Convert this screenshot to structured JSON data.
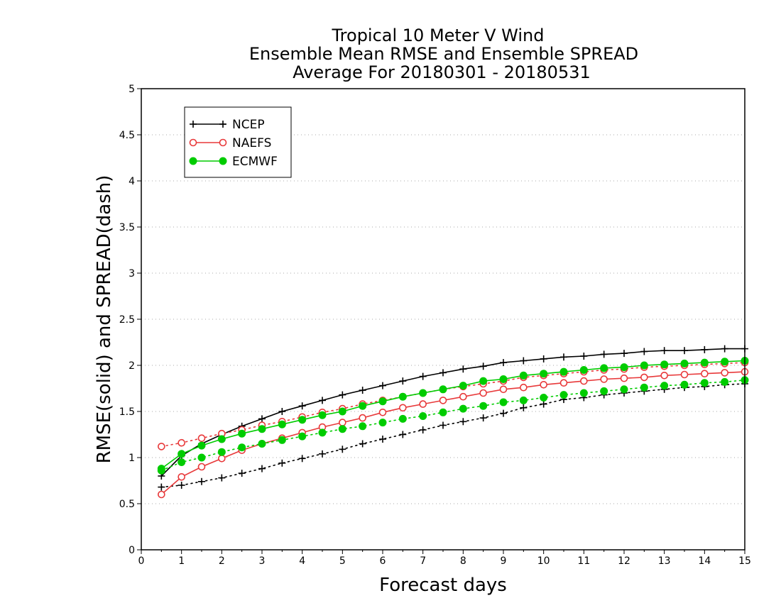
{
  "chart_data": {
    "type": "line",
    "title_lines": [
      "Tropical 10 Meter V Wind",
      "Ensemble Mean RMSE and Ensemble SPREAD",
      "Average For 20180301 - 20180531"
    ],
    "xlabel": "Forecast days",
    "ylabel": "RMSE(solid) and SPREAD(dash)",
    "xlim": [
      0,
      15
    ],
    "ylim": [
      0,
      5
    ],
    "xticks": [
      "0",
      "1",
      "2",
      "3",
      "4",
      "5",
      "6",
      "7",
      "8",
      "9",
      "10",
      "11",
      "12",
      "13",
      "14",
      "15"
    ],
    "yticks": [
      "0",
      "0.5",
      "1",
      "1.5",
      "2",
      "2.5",
      "3",
      "3.5",
      "4",
      "4.5",
      "5"
    ],
    "grid": "horizontal dotted",
    "legend_position": "top-left",
    "x": [
      0.5,
      1,
      1.5,
      2,
      2.5,
      3,
      3.5,
      4,
      4.5,
      5,
      5.5,
      6,
      6.5,
      7,
      7.5,
      8,
      8.5,
      9,
      9.5,
      10,
      10.5,
      11,
      11.5,
      12,
      12.5,
      13,
      13.5,
      14,
      14.5,
      15
    ],
    "series": [
      {
        "name": "NCEP",
        "color": "#000000",
        "marker": "plus",
        "rmse": [
          0.8,
          1.02,
          1.15,
          1.25,
          1.34,
          1.42,
          1.5,
          1.56,
          1.62,
          1.68,
          1.73,
          1.78,
          1.83,
          1.88,
          1.92,
          1.96,
          1.99,
          2.03,
          2.05,
          2.07,
          2.09,
          2.1,
          2.12,
          2.13,
          2.15,
          2.16,
          2.16,
          2.17,
          2.18,
          2.18
        ],
        "spread": [
          0.68,
          0.7,
          0.74,
          0.78,
          0.83,
          0.88,
          0.94,
          0.99,
          1.04,
          1.09,
          1.15,
          1.2,
          1.25,
          1.3,
          1.35,
          1.39,
          1.43,
          1.48,
          1.54,
          1.58,
          1.63,
          1.65,
          1.68,
          1.7,
          1.72,
          1.74,
          1.76,
          1.77,
          1.79,
          1.8
        ]
      },
      {
        "name": "NAEFS",
        "color": "#e8393a",
        "marker": "open-circle",
        "rmse": [
          0.6,
          0.79,
          0.9,
          0.99,
          1.08,
          1.15,
          1.21,
          1.27,
          1.33,
          1.38,
          1.43,
          1.49,
          1.54,
          1.58,
          1.62,
          1.66,
          1.7,
          1.74,
          1.76,
          1.79,
          1.81,
          1.83,
          1.85,
          1.86,
          1.87,
          1.89,
          1.9,
          1.91,
          1.92,
          1.93
        ],
        "spread": [
          1.12,
          1.16,
          1.21,
          1.26,
          1.3,
          1.35,
          1.39,
          1.44,
          1.49,
          1.53,
          1.58,
          1.62,
          1.66,
          1.7,
          1.74,
          1.77,
          1.8,
          1.83,
          1.87,
          1.89,
          1.91,
          1.93,
          1.95,
          1.96,
          1.98,
          1.99,
          2.0,
          2.01,
          2.02,
          2.03
        ]
      },
      {
        "name": "ECMWF",
        "color": "#00cc00",
        "marker": "filled-circle",
        "rmse": [
          0.88,
          1.04,
          1.13,
          1.2,
          1.26,
          1.31,
          1.36,
          1.41,
          1.46,
          1.5,
          1.56,
          1.61,
          1.66,
          1.7,
          1.74,
          1.78,
          1.83,
          1.85,
          1.89,
          1.91,
          1.93,
          1.95,
          1.97,
          1.98,
          2.0,
          2.01,
          2.02,
          2.03,
          2.04,
          2.05
        ],
        "spread": [
          0.86,
          0.95,
          1.0,
          1.06,
          1.11,
          1.15,
          1.19,
          1.23,
          1.27,
          1.31,
          1.34,
          1.38,
          1.42,
          1.45,
          1.49,
          1.53,
          1.56,
          1.6,
          1.62,
          1.65,
          1.68,
          1.7,
          1.72,
          1.74,
          1.76,
          1.78,
          1.79,
          1.81,
          1.82,
          1.84
        ]
      }
    ]
  }
}
